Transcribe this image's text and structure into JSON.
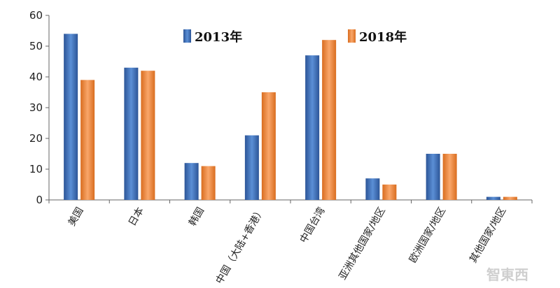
{
  "chart_data": {
    "type": "bar",
    "categories": [
      "美国",
      "日本",
      "韩国",
      "中国（大陆+香港）",
      "中国台湾",
      "亚洲其他国家/地区",
      "欧洲国家/地区",
      "其他国家/地区"
    ],
    "series": [
      {
        "name": "2013年",
        "color": "#3f6fb5",
        "values": [
          54,
          43,
          12,
          21,
          47,
          7,
          15,
          1
        ]
      },
      {
        "name": "2018年",
        "color": "#f08a3c",
        "values": [
          39,
          42,
          11,
          35,
          52,
          5,
          15,
          1
        ]
      }
    ],
    "yticks": [
      0,
      10,
      20,
      30,
      40,
      50,
      60
    ],
    "ylim": [
      0,
      60
    ],
    "title": "",
    "xlabel": "",
    "ylabel": "",
    "grid": false,
    "legend_position": "top"
  },
  "watermark": {
    "text": "智東西"
  }
}
